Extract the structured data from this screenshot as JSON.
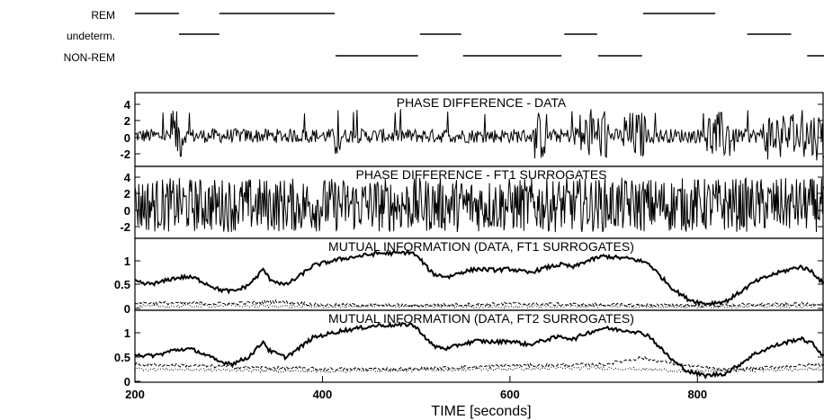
{
  "chart_data": {
    "type": "line",
    "xlabel": "TIME [seconds]",
    "xlim": [
      200,
      935
    ],
    "x_ticks": [
      "200",
      "400",
      "600",
      "800"
    ],
    "stages": {
      "labels": [
        "REM",
        "undeterm.",
        "NON-REM"
      ],
      "intervals": {
        "REM": [
          [
            200,
            247
          ],
          [
            290,
            413
          ],
          [
            742,
            819
          ]
        ],
        "undeterm.": [
          [
            247,
            290
          ],
          [
            504,
            548
          ],
          [
            658,
            693
          ],
          [
            853,
            900
          ]
        ],
        "NON-REM": [
          [
            414,
            502
          ],
          [
            550,
            655
          ],
          [
            694,
            741
          ],
          [
            917,
            935
          ]
        ]
      }
    },
    "panels": [
      {
        "title": "PHASE DIFFERENCE - DATA",
        "ylim": [
          -3.2,
          4.8
        ],
        "y_ticks": [
          "4",
          "2",
          "0",
          "-2"
        ],
        "series": [
          {
            "style": "solid-thin",
            "generator": "phase-data"
          }
        ]
      },
      {
        "title": "PHASE DIFFERENCE - FT1 SURROGATES",
        "ylim": [
          -3.2,
          4.8
        ],
        "y_ticks": [
          "4",
          "2",
          "0",
          "-2"
        ],
        "series": [
          {
            "style": "solid-thin",
            "generator": "phase-surrogate"
          }
        ]
      },
      {
        "title": "MUTUAL INFORMATION (DATA, FT1 SURROGATES)",
        "ylim": [
          0,
          1.25
        ],
        "y_ticks": [
          "1",
          "0.5",
          "0"
        ],
        "series": [
          {
            "style": "solid-thick",
            "keypoints": [
              [
                200,
                0.5
              ],
              [
                210,
                0.45
              ],
              [
                225,
                0.47
              ],
              [
                240,
                0.55
              ],
              [
                255,
                0.58
              ],
              [
                265,
                0.55
              ],
              [
                290,
                0.35
              ],
              [
                305,
                0.32
              ],
              [
                320,
                0.42
              ],
              [
                330,
                0.58
              ],
              [
                337,
                0.72
              ],
              [
                343,
                0.55
              ],
              [
                360,
                0.43
              ],
              [
                372,
                0.55
              ],
              [
                390,
                0.78
              ],
              [
                410,
                0.86
              ],
              [
                420,
                0.9
              ],
              [
                440,
                0.95
              ],
              [
                460,
                1.0
              ],
              [
                480,
                1.0
              ],
              [
                495,
                1.02
              ],
              [
                505,
                0.88
              ],
              [
                515,
                0.68
              ],
              [
                520,
                0.62
              ],
              [
                535,
                0.58
              ],
              [
                545,
                0.65
              ],
              [
                565,
                0.72
              ],
              [
                585,
                0.7
              ],
              [
                600,
                0.72
              ],
              [
                620,
                0.65
              ],
              [
                640,
                0.75
              ],
              [
                655,
                0.8
              ],
              [
                668,
                0.75
              ],
              [
                680,
                0.85
              ],
              [
                700,
                0.95
              ],
              [
                715,
                0.92
              ],
              [
                730,
                0.9
              ],
              [
                748,
                0.82
              ],
              [
                760,
                0.6
              ],
              [
                775,
                0.35
              ],
              [
                790,
                0.18
              ],
              [
                808,
                0.1
              ],
              [
                830,
                0.14
              ],
              [
                845,
                0.3
              ],
              [
                860,
                0.48
              ],
              [
                880,
                0.62
              ],
              [
                900,
                0.72
              ],
              [
                910,
                0.76
              ],
              [
                922,
                0.68
              ],
              [
                935,
                0.45
              ]
            ]
          },
          {
            "style": "dashed",
            "keypoints": [
              [
                200,
                0.12
              ],
              [
                300,
                0.1
              ],
              [
                350,
                0.14
              ],
              [
                400,
                0.08
              ],
              [
                500,
                0.07
              ],
              [
                600,
                0.1
              ],
              [
                700,
                0.08
              ],
              [
                800,
                0.07
              ],
              [
                935,
                0.1
              ]
            ]
          },
          {
            "style": "dotted",
            "keypoints": [
              [
                200,
                0.05
              ],
              [
                300,
                0.07
              ],
              [
                400,
                0.05
              ],
              [
                500,
                0.06
              ],
              [
                600,
                0.05
              ],
              [
                700,
                0.06
              ],
              [
                800,
                0.05
              ],
              [
                935,
                0.06
              ]
            ]
          }
        ]
      },
      {
        "title": "MUTUAL INFORMATION (DATA, FT2 SURROGATES)",
        "ylim": [
          0,
          1.25
        ],
        "y_ticks": [
          "1",
          "0.5",
          "0"
        ],
        "series": [
          {
            "style": "solid-thick",
            "keypoints": [
              [
                200,
                0.5
              ],
              [
                210,
                0.45
              ],
              [
                225,
                0.47
              ],
              [
                240,
                0.55
              ],
              [
                255,
                0.58
              ],
              [
                265,
                0.55
              ],
              [
                290,
                0.35
              ],
              [
                305,
                0.32
              ],
              [
                320,
                0.42
              ],
              [
                330,
                0.58
              ],
              [
                337,
                0.72
              ],
              [
                343,
                0.55
              ],
              [
                360,
                0.43
              ],
              [
                372,
                0.55
              ],
              [
                390,
                0.78
              ],
              [
                410,
                0.86
              ],
              [
                420,
                0.9
              ],
              [
                440,
                0.95
              ],
              [
                460,
                1.0
              ],
              [
                480,
                1.0
              ],
              [
                495,
                1.02
              ],
              [
                505,
                0.88
              ],
              [
                515,
                0.68
              ],
              [
                520,
                0.62
              ],
              [
                535,
                0.58
              ],
              [
                545,
                0.65
              ],
              [
                565,
                0.72
              ],
              [
                585,
                0.7
              ],
              [
                600,
                0.72
              ],
              [
                620,
                0.65
              ],
              [
                640,
                0.75
              ],
              [
                655,
                0.8
              ],
              [
                668,
                0.75
              ],
              [
                680,
                0.85
              ],
              [
                700,
                0.95
              ],
              [
                715,
                0.92
              ],
              [
                730,
                0.9
              ],
              [
                748,
                0.82
              ],
              [
                760,
                0.6
              ],
              [
                775,
                0.35
              ],
              [
                790,
                0.18
              ],
              [
                808,
                0.1
              ],
              [
                830,
                0.14
              ],
              [
                845,
                0.3
              ],
              [
                860,
                0.48
              ],
              [
                880,
                0.62
              ],
              [
                900,
                0.72
              ],
              [
                910,
                0.76
              ],
              [
                922,
                0.68
              ],
              [
                935,
                0.45
              ]
            ]
          },
          {
            "style": "dashed",
            "keypoints": [
              [
                200,
                0.3
              ],
              [
                260,
                0.28
              ],
              [
                320,
                0.25
              ],
              [
                400,
                0.22
              ],
              [
                500,
                0.22
              ],
              [
                600,
                0.28
              ],
              [
                700,
                0.3
              ],
              [
                740,
                0.42
              ],
              [
                780,
                0.3
              ],
              [
                830,
                0.2
              ],
              [
                880,
                0.25
              ],
              [
                935,
                0.3
              ]
            ]
          },
          {
            "style": "dotted",
            "keypoints": [
              [
                200,
                0.22
              ],
              [
                300,
                0.2
              ],
              [
                400,
                0.18
              ],
              [
                500,
                0.2
              ],
              [
                600,
                0.22
              ],
              [
                700,
                0.24
              ],
              [
                800,
                0.18
              ],
              [
                935,
                0.22
              ]
            ]
          }
        ]
      }
    ]
  }
}
